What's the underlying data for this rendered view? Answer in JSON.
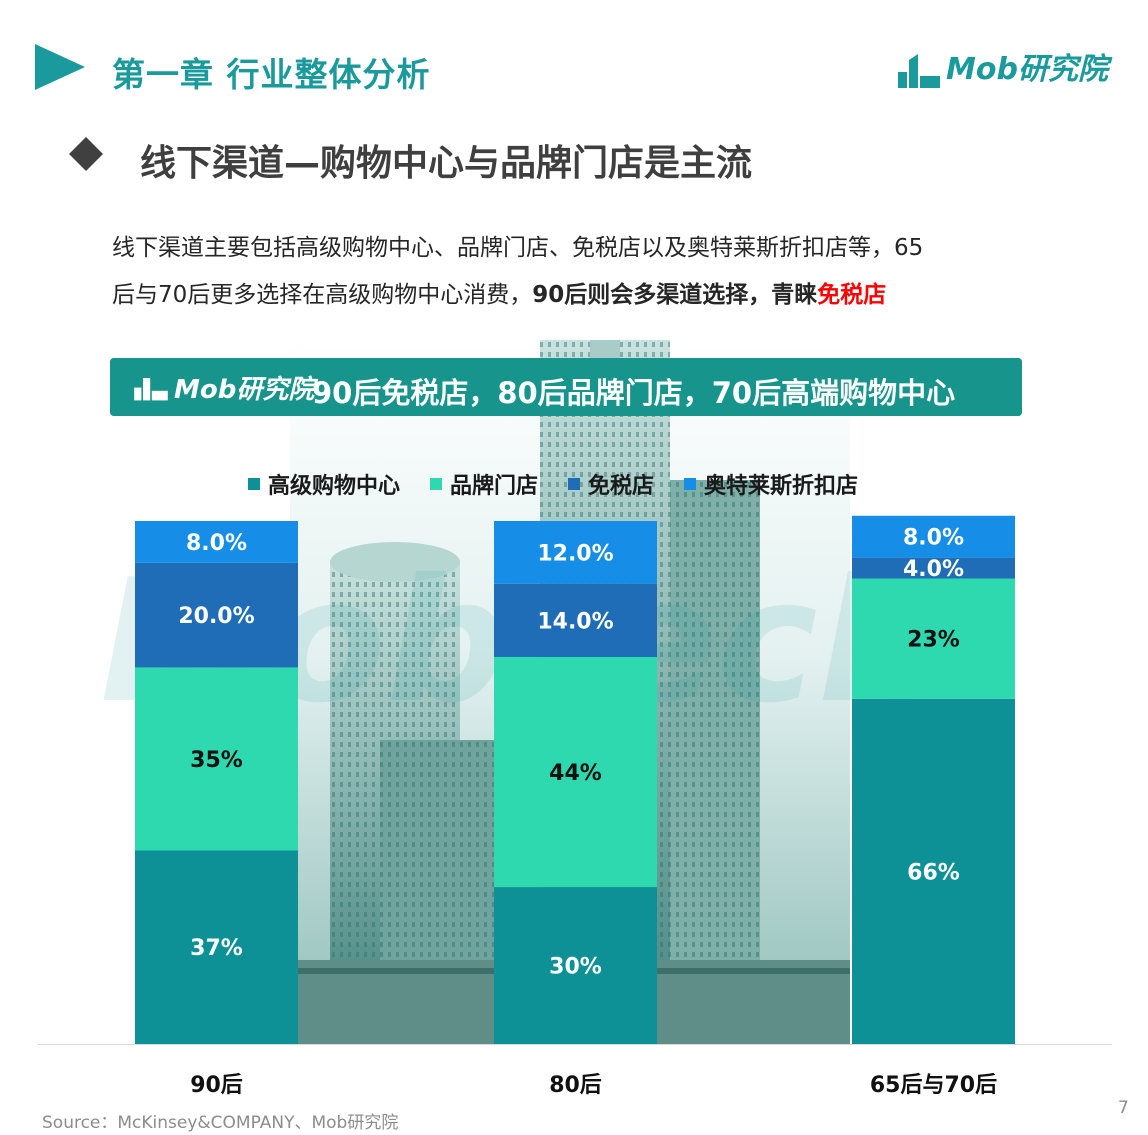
{
  "header": {
    "chapter_title": "第一章  行业整体分析",
    "brand": "Mob研究院"
  },
  "section": {
    "title": "线下渠道—购物中心与品牌门店是主流"
  },
  "description": {
    "line1": "线下渠道主要包括高级购物中心、品牌门店、免税店以及奥特莱斯折扣店等，65",
    "line2_plain": "后与70后更多选择在高级购物中心消费，",
    "line2_bold": "90后则会多渠道选择，青睐",
    "line2_red": "免税店"
  },
  "banner": {
    "logo": "Mob研究院",
    "text": "90后免税店，80后品牌门店，70后高端购物中心"
  },
  "colors": {
    "brand": "#1a9a9c",
    "mall": "#0d9196",
    "brand_store": "#2ed9b0",
    "duty_free": "#1f6db6",
    "outlet": "#168ee8"
  },
  "chart_data": {
    "type": "bar",
    "stacked": true,
    "categories": [
      "90后",
      "80后",
      "65后与70后"
    ],
    "series": [
      {
        "name": "高级购物中心",
        "values": [
          37,
          30,
          66
        ],
        "labels": [
          "37%",
          "30%",
          "66%"
        ],
        "color": "#0d9196"
      },
      {
        "name": "品牌门店",
        "values": [
          35,
          44,
          23
        ],
        "labels": [
          "35%",
          "44%",
          "23%"
        ],
        "color": "#2ed9b0"
      },
      {
        "name": "免税店",
        "values": [
          20,
          14,
          4
        ],
        "labels": [
          "20.0%",
          "14.0%",
          "4.0%"
        ],
        "color": "#1f6db6"
      },
      {
        "name": "奥特莱斯折扣店",
        "values": [
          8,
          12,
          8
        ],
        "labels": [
          "8.0%",
          "12.0%",
          "8.0%"
        ],
        "color": "#168ee8"
      }
    ],
    "ylim": [
      0,
      100
    ],
    "legend_position": "top",
    "grid": false
  },
  "source": "Source：McKinsey&COMPANY、Mob研究院",
  "page_number": "7"
}
